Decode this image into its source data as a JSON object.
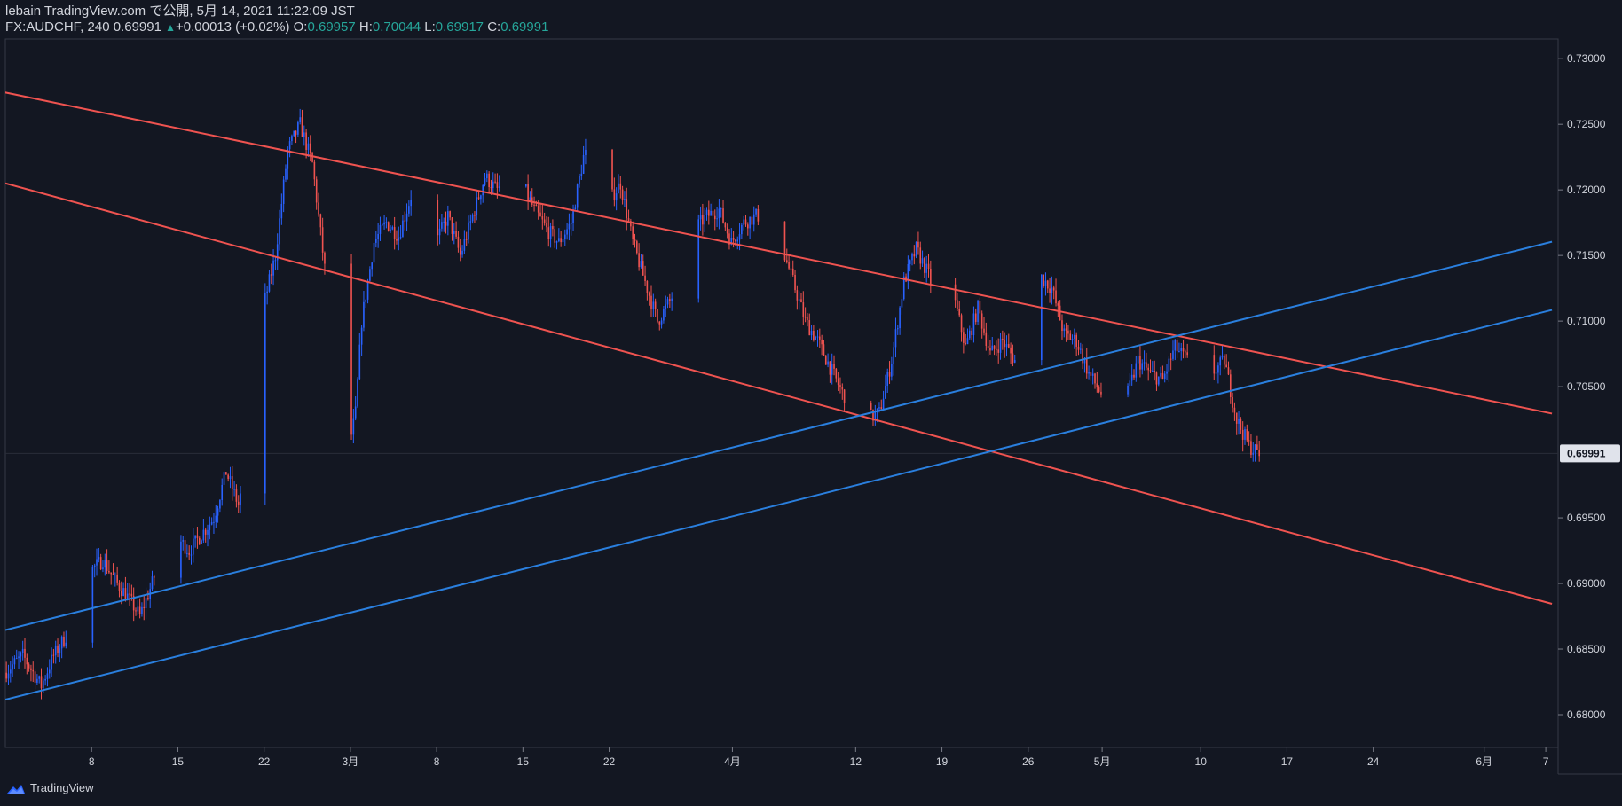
{
  "header": {
    "publish_line": "lebain TradingView.com で公開, 5月 14, 2021 11:22:09 JST",
    "symbol": "FX:AUDCHF, 240",
    "last": "0.69991",
    "change": "+0.00013 (+0.02%)",
    "o_label": "O:",
    "o_value": "0.69957",
    "h_label": "H:",
    "h_value": "0.70044",
    "l_label": "L:",
    "l_value": "0.69917",
    "c_label": "C:",
    "c_value": "0.69991"
  },
  "footer": {
    "brand": "TradingView"
  },
  "colors": {
    "background": "#131722",
    "grid_border": "#363a45",
    "up_candle": "#2962ff",
    "down_candle": "#ef5350",
    "red_line": "#ef5350",
    "blue_line": "#2a7fde",
    "price_tag_bg": "#e0e3eb",
    "text": "#d1d4dc"
  },
  "chart_data": {
    "type": "candlestick",
    "symbol": "FX:AUDCHF",
    "interval": "240",
    "current_price": 0.69991,
    "current_price_label": "0.69991",
    "ylim": [
      0.6775,
      0.7315
    ],
    "y_ticks": [
      {
        "value": 0.73,
        "label": "0.73000"
      },
      {
        "value": 0.725,
        "label": "0.72500"
      },
      {
        "value": 0.72,
        "label": "0.72000"
      },
      {
        "value": 0.715,
        "label": "0.71500"
      },
      {
        "value": 0.71,
        "label": "0.71000"
      },
      {
        "value": 0.705,
        "label": "0.70500"
      },
      {
        "value": 0.695,
        "label": "0.69500"
      },
      {
        "value": 0.69,
        "label": "0.69000"
      },
      {
        "value": 0.685,
        "label": "0.68500"
      },
      {
        "value": 0.68,
        "label": "0.68000"
      }
    ],
    "x_axis": {
      "start_date": "2021-02-01",
      "end_date": "2021-06-07",
      "days": 126
    },
    "x_ticks": [
      {
        "day": 7,
        "label": "8"
      },
      {
        "day": 14,
        "label": "15"
      },
      {
        "day": 21,
        "label": "22"
      },
      {
        "day": 28,
        "label": "3月"
      },
      {
        "day": 35,
        "label": "8"
      },
      {
        "day": 42,
        "label": "15"
      },
      {
        "day": 49,
        "label": "22"
      },
      {
        "day": 59,
        "label": "4月"
      },
      {
        "day": 69,
        "label": "12"
      },
      {
        "day": 76,
        "label": "19"
      },
      {
        "day": 83,
        "label": "26"
      },
      {
        "day": 89,
        "label": "5月"
      },
      {
        "day": 97,
        "label": "10"
      },
      {
        "day": 104,
        "label": "17"
      },
      {
        "day": 111,
        "label": "24"
      },
      {
        "day": 120,
        "label": "6月"
      },
      {
        "day": 125,
        "label": "7"
      }
    ],
    "price_path": [
      [
        0,
        0.6832
      ],
      [
        1.5,
        0.6845
      ],
      [
        3,
        0.6822
      ],
      [
        4,
        0.6845
      ],
      [
        5,
        0.686
      ],
      [
        6,
        0.6885
      ],
      [
        7,
        0.691
      ],
      [
        8,
        0.6918
      ],
      [
        9,
        0.6902
      ],
      [
        10,
        0.689
      ],
      [
        11,
        0.6875
      ],
      [
        12,
        0.69
      ],
      [
        13,
        0.693
      ],
      [
        14,
        0.6935
      ],
      [
        15,
        0.6925
      ],
      [
        17,
        0.695
      ],
      [
        18,
        0.6985
      ],
      [
        19,
        0.696
      ],
      [
        20,
        0.7
      ],
      [
        21,
        0.711
      ],
      [
        22,
        0.715
      ],
      [
        23,
        0.723
      ],
      [
        24,
        0.725
      ],
      [
        25,
        0.722
      ],
      [
        26,
        0.714
      ],
      [
        27,
        0.705
      ],
      [
        27.8,
        0.6995
      ],
      [
        28.5,
        0.703
      ],
      [
        29,
        0.71
      ],
      [
        30,
        0.716
      ],
      [
        31,
        0.7175
      ],
      [
        32,
        0.7165
      ],
      [
        33,
        0.7195
      ],
      [
        34,
        0.713
      ],
      [
        35,
        0.716
      ],
      [
        36,
        0.718
      ],
      [
        37,
        0.715
      ],
      [
        38,
        0.718
      ],
      [
        39,
        0.721
      ],
      [
        40,
        0.72
      ],
      [
        41,
        0.721
      ],
      [
        42,
        0.7205
      ],
      [
        43,
        0.7185
      ],
      [
        44,
        0.717
      ],
      [
        45,
        0.716
      ],
      [
        46,
        0.7175
      ],
      [
        47,
        0.7225
      ],
      [
        48,
        0.7235
      ],
      [
        49,
        0.719
      ],
      [
        50,
        0.7205
      ],
      [
        51,
        0.716
      ],
      [
        52,
        0.713
      ],
      [
        53,
        0.71
      ],
      [
        54,
        0.7115
      ],
      [
        55,
        0.7135
      ],
      [
        56,
        0.717
      ],
      [
        57,
        0.718
      ],
      [
        58,
        0.7185
      ],
      [
        59,
        0.716
      ],
      [
        60,
        0.7175
      ],
      [
        61,
        0.718
      ],
      [
        62,
        0.718
      ],
      [
        63,
        0.716
      ],
      [
        64,
        0.713
      ],
      [
        65,
        0.71
      ],
      [
        66,
        0.7085
      ],
      [
        67,
        0.7065
      ],
      [
        68,
        0.7045
      ],
      [
        69,
        0.7035
      ],
      [
        70,
        0.7025
      ],
      [
        71,
        0.703
      ],
      [
        72,
        0.707
      ],
      [
        73,
        0.713
      ],
      [
        74,
        0.7155
      ],
      [
        75,
        0.7135
      ],
      [
        76,
        0.7105
      ],
      [
        77,
        0.712
      ],
      [
        78,
        0.708
      ],
      [
        79,
        0.711
      ],
      [
        80,
        0.7075
      ],
      [
        81,
        0.7085
      ],
      [
        82,
        0.707
      ],
      [
        83,
        0.7095
      ],
      [
        84,
        0.7135
      ],
      [
        85,
        0.7125
      ],
      [
        86,
        0.709
      ],
      [
        87,
        0.7085
      ],
      [
        88,
        0.706
      ],
      [
        89,
        0.7045
      ],
      [
        90,
        0.7075
      ],
      [
        91,
        0.704
      ],
      [
        92,
        0.707
      ],
      [
        93,
        0.706
      ],
      [
        94,
        0.7055
      ],
      [
        95,
        0.708
      ],
      [
        96,
        0.707
      ],
      [
        97,
        0.7085
      ],
      [
        98,
        0.706
      ],
      [
        99,
        0.707
      ],
      [
        100,
        0.7025
      ],
      [
        101,
        0.7005
      ],
      [
        101.8,
        0.69991
      ]
    ],
    "trend_lines": [
      {
        "name": "descending-channel-upper",
        "color": "red",
        "p1": [
          -15,
          0.73035
        ],
        "p2": [
          125.5,
          0.70295
        ]
      },
      {
        "name": "descending-channel-lower",
        "color": "red",
        "p1": [
          0,
          0.7205
        ],
        "p2": [
          125.5,
          0.68845
        ]
      },
      {
        "name": "ascending-channel-upper",
        "color": "blue",
        "p1": [
          0,
          0.68645
        ],
        "p2": [
          125.5,
          0.71605
        ]
      },
      {
        "name": "ascending-channel-lower",
        "color": "blue",
        "p1": [
          0,
          0.68115
        ],
        "p2": [
          125.5,
          0.71085
        ]
      }
    ]
  }
}
